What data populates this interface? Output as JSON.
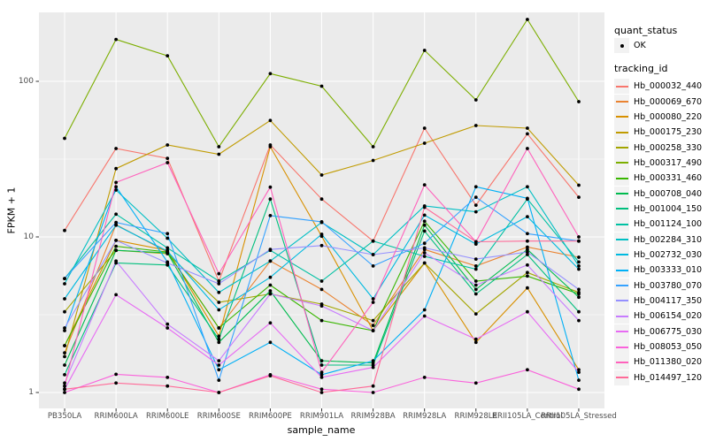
{
  "chart_data": {
    "type": "line",
    "title": "",
    "xlabel": "sample_name",
    "ylabel": "FPKM + 1",
    "y_scale": "log10",
    "y_ticks": [
      1,
      10,
      100
    ],
    "y_minor_ticks": [
      3.1623,
      31.623,
      316.23
    ],
    "ylim": [
      0.79,
      280
    ],
    "grid": "on",
    "legend_position": "right",
    "panel_bg": "#EBEBEB",
    "grid_color": "#FFFFFF",
    "point_color": "#000000",
    "tick_label_color": "#4D4D4D",
    "categories": [
      "PB350LA",
      "RRIM600LA",
      "RRIM600LE",
      "RRIM600SE",
      "RRIM600PE",
      "RRIM901LA",
      "RRIM928BA",
      "RRIM928LA",
      "RRIM928LE",
      "RRII105LA_Control",
      "RRII105LA_Stressed"
    ],
    "legend": {
      "quant_status_title": "quant_status",
      "quant_status_label": "OK",
      "tracking_title": "tracking_id"
    },
    "series": [
      {
        "id": "Hb_000032_440",
        "color": "#F8766D",
        "values": [
          11,
          37,
          32,
          5.2,
          39,
          17.5,
          9.4,
          50,
          16,
          46,
          18
        ]
      },
      {
        "id": "Hb_000069_670",
        "color": "#EA8331",
        "values": [
          1.8,
          12,
          8.0,
          2.6,
          7.0,
          4.6,
          2.7,
          8.3,
          6.5,
          8.6,
          7.4
        ]
      },
      {
        "id": "Hb_000080_220",
        "color": "#D89000",
        "values": [
          2.0,
          9.5,
          8.2,
          2.3,
          38,
          10.1,
          2.5,
          6.8,
          2.1,
          4.7,
          1.4
        ]
      },
      {
        "id": "Hb_000175_230",
        "color": "#C09B00",
        "values": [
          1.7,
          27.5,
          39,
          34,
          56,
          25,
          31,
          40,
          52,
          50,
          21.5
        ]
      },
      {
        "id": "Hb_000258_330",
        "color": "#A3A500",
        "values": [
          3.3,
          8.2,
          7.8,
          3.8,
          4.3,
          3.7,
          2.9,
          6.8,
          3.2,
          5.9,
          4.4
        ]
      },
      {
        "id": "Hb_000317_490",
        "color": "#7CAE00",
        "values": [
          43,
          186,
          146,
          38,
          112,
          93,
          38,
          158,
          76,
          250,
          74
        ]
      },
      {
        "id": "Hb_000331_460",
        "color": "#39B600",
        "values": [
          2.0,
          8.7,
          8.0,
          2.6,
          4.9,
          2.9,
          2.5,
          12.6,
          5.2,
          5.6,
          4.3
        ]
      },
      {
        "id": "Hb_000708_040",
        "color": "#00BB4E",
        "values": [
          1.5,
          8.2,
          7.9,
          2.1,
          4.5,
          1.6,
          1.55,
          11.9,
          4.6,
          8.3,
          4.1
        ]
      },
      {
        "id": "Hb_001004_150",
        "color": "#00BF7D",
        "values": [
          1.3,
          6.8,
          6.6,
          2.2,
          17.5,
          1.5,
          1.5,
          10.9,
          4.3,
          7.7,
          3.3
        ]
      },
      {
        "id": "Hb_001124_100",
        "color": "#00C1A3",
        "values": [
          5.4,
          14,
          8.5,
          5.2,
          8.2,
          5.2,
          9.4,
          7.5,
          6.2,
          17.5,
          6.9
        ]
      },
      {
        "id": "Hb_002284_310",
        "color": "#00BFC4",
        "values": [
          5.0,
          20,
          9.8,
          4.4,
          7.0,
          12.4,
          7.7,
          15.8,
          14.5,
          21,
          6.5
        ]
      },
      {
        "id": "Hb_002732_030",
        "color": "#00BAE0",
        "values": [
          4.0,
          11.9,
          8.1,
          3.4,
          5.5,
          10.4,
          4.0,
          13.8,
          9.0,
          13.5,
          6.2
        ]
      },
      {
        "id": "Hb_003333_010",
        "color": "#00B0F6",
        "values": [
          2.5,
          21,
          6.9,
          1.4,
          2.1,
          1.3,
          1.6,
          3.4,
          21,
          17.7,
          1.2
        ]
      },
      {
        "id": "Hb_003780_070",
        "color": "#35A2FF",
        "values": [
          5.4,
          12.4,
          10.5,
          1.2,
          13.7,
          12.5,
          6.5,
          9.1,
          18,
          10.5,
          9.4
        ]
      },
      {
        "id": "Hb_004117_350",
        "color": "#9590FF",
        "values": [
          2.6,
          9.5,
          6.8,
          5.0,
          8.3,
          8.8,
          7.7,
          8.5,
          7.2,
          8.0,
          4.6
        ]
      },
      {
        "id": "Hb_006154_020",
        "color": "#C77CFF",
        "values": [
          1.15,
          7.0,
          2.75,
          1.6,
          4.3,
          3.6,
          2.5,
          7.9,
          4.9,
          6.6,
          2.9
        ]
      },
      {
        "id": "Hb_006775_030",
        "color": "#E76BF3",
        "values": [
          1.05,
          4.25,
          2.6,
          1.5,
          2.8,
          1.25,
          1.45,
          3.1,
          2.2,
          3.3,
          1.35
        ]
      },
      {
        "id": "Hb_008053_050",
        "color": "#FA62DB",
        "values": [
          1.0,
          1.31,
          1.25,
          1.0,
          1.3,
          1.05,
          1.0,
          1.25,
          1.15,
          1.4,
          1.05
        ]
      },
      {
        "id": "Hb_011380_020",
        "color": "#FF62BC",
        "values": [
          1.1,
          22.4,
          30,
          5.8,
          20.9,
          1.35,
          3.8,
          21.6,
          9.3,
          37,
          10
        ]
      },
      {
        "id": "Hb_014497_120",
        "color": "#FF6A98",
        "values": [
          1.05,
          1.15,
          1.1,
          1.0,
          1.28,
          1.0,
          1.1,
          15.5,
          9.3,
          9.4,
          9.4
        ]
      }
    ]
  }
}
